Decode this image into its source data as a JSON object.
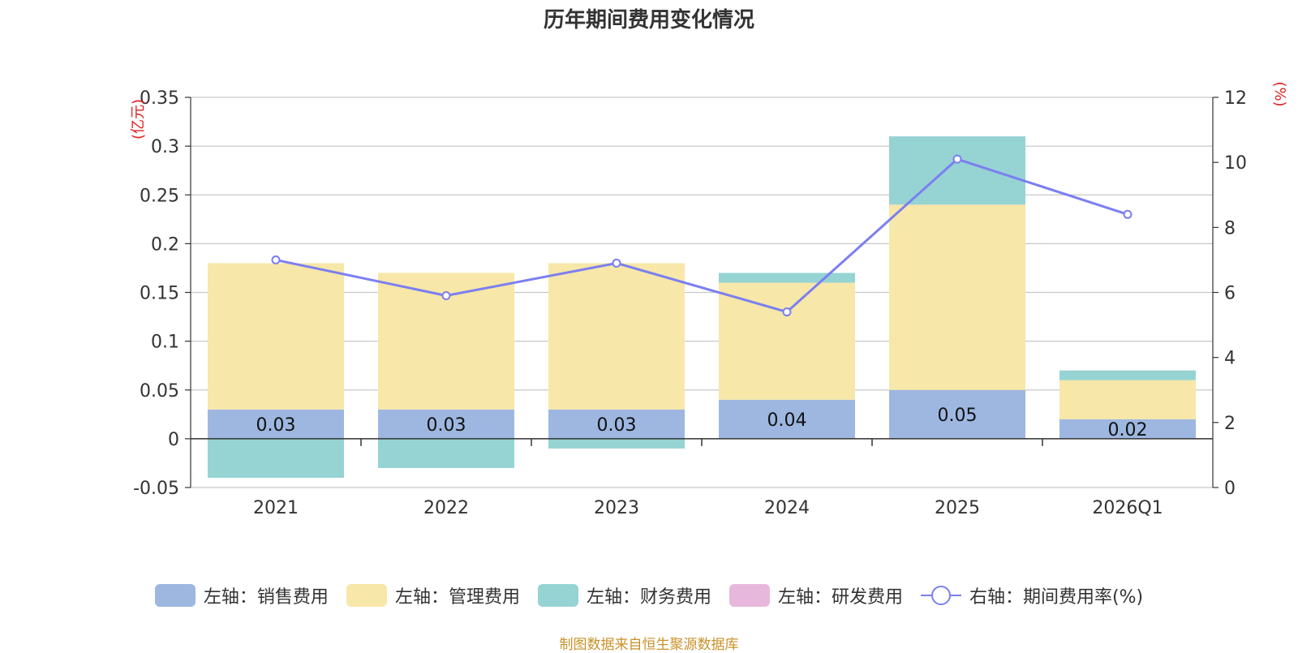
{
  "chart_data": {
    "type": "bar",
    "title": "历年期间费用变化情况",
    "categories": [
      "2021",
      "2022",
      "2023",
      "2024",
      "2025",
      "2026Q1"
    ],
    "left_axis": {
      "unit": "(亿元)",
      "ylim": [
        -0.05,
        0.35
      ],
      "ticks": [
        -0.05,
        0,
        0.05,
        0.1,
        0.15,
        0.2,
        0.25,
        0.3,
        0.35
      ],
      "tick_labels": [
        "-0.05",
        "0",
        "0.05",
        "0.1",
        "0.15",
        "0.2",
        "0.25",
        "0.3",
        "0.35"
      ]
    },
    "right_axis": {
      "unit": "(%)",
      "ylim": [
        0,
        12
      ],
      "ticks": [
        0,
        2,
        4,
        6,
        8,
        10,
        12
      ],
      "tick_labels": [
        "0",
        "2",
        "4",
        "6",
        "8",
        "10",
        "12"
      ]
    },
    "series": [
      {
        "name": "左轴：销售费用",
        "kind": "bar",
        "color": "#9db7e0",
        "values": [
          0.03,
          0.03,
          0.03,
          0.04,
          0.05,
          0.02
        ],
        "labels": [
          "0.03",
          "0.03",
          "0.03",
          "0.04",
          "0.05",
          "0.02"
        ]
      },
      {
        "name": "左轴：管理费用",
        "kind": "bar",
        "color": "#f7e7a8",
        "values": [
          0.15,
          0.14,
          0.15,
          0.12,
          0.19,
          0.04
        ]
      },
      {
        "name": "左轴：财务费用",
        "kind": "bar",
        "color": "#96d3d3",
        "values": [
          -0.04,
          -0.03,
          -0.01,
          0.01,
          0.07,
          0.01
        ]
      },
      {
        "name": "左轴：研发费用",
        "kind": "bar",
        "color": "#e8b8dc",
        "values": [
          0,
          0,
          0,
          0,
          0,
          0
        ]
      },
      {
        "name": "右轴：期间费用率(%)",
        "kind": "line",
        "color": "#7b7ff0",
        "values": [
          7.0,
          5.9,
          6.9,
          5.4,
          10.1,
          8.4
        ]
      }
    ],
    "grid": true,
    "legend_position": "bottom"
  },
  "source": "制图数据来自恒生聚源数据库"
}
